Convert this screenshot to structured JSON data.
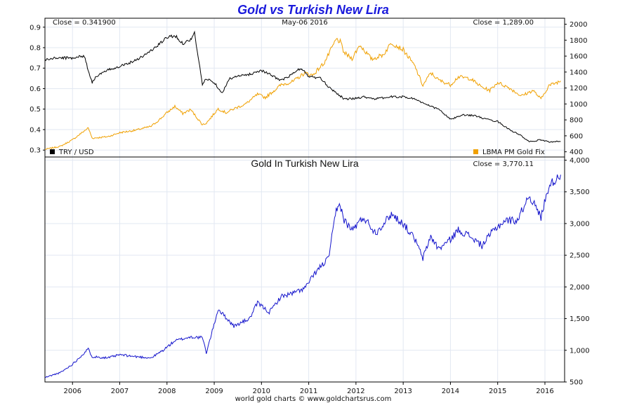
{
  "title": "Gold vs Turkish New Lira",
  "footer": "world gold charts © www.goldchartsrus.com",
  "chart_data": [
    {
      "type": "line",
      "date_label": "May-06 2016",
      "left_close_label": "Close = 0.341900",
      "right_close_label": "Close = 1,289.00",
      "x_range": [
        "2005-06",
        "2016-05"
      ],
      "x_ticks": [
        "2006",
        "2007",
        "2008",
        "2009",
        "2010",
        "2011",
        "2012",
        "2013",
        "2014",
        "2015",
        "2016"
      ],
      "left_axis": {
        "ylim": [
          0.28,
          0.93
        ],
        "ticks": [
          "0.3",
          "0.4",
          "0.5",
          "0.6",
          "0.7",
          "0.8",
          "0.9"
        ]
      },
      "right_axis": {
        "ylim": [
          370,
          2040
        ],
        "ticks": [
          "400",
          "600",
          "800",
          "1000",
          "1200",
          "1400",
          "1600",
          "1800",
          "2000"
        ]
      },
      "legend_position": "bottom",
      "grid": true,
      "series": [
        {
          "name": "TRY / USD",
          "axis": "left",
          "color": "#000000",
          "x": [
            "2005-06",
            "2005-09",
            "2006-01",
            "2006-04",
            "2006-05",
            "2006-06",
            "2006-07",
            "2006-10",
            "2007-01",
            "2007-04",
            "2007-07",
            "2007-10",
            "2008-01",
            "2008-03",
            "2008-05",
            "2008-07",
            "2008-08",
            "2008-10",
            "2008-11",
            "2009-01",
            "2009-03",
            "2009-05",
            "2009-07",
            "2009-10",
            "2010-01",
            "2010-04",
            "2010-06",
            "2010-08",
            "2010-11",
            "2011-01",
            "2011-04",
            "2011-06",
            "2011-08",
            "2011-10",
            "2011-12",
            "2012-03",
            "2012-06",
            "2012-10",
            "2013-01",
            "2013-04",
            "2013-07",
            "2013-10",
            "2014-01",
            "2014-04",
            "2014-07",
            "2014-10",
            "2015-01",
            "2015-04",
            "2015-07",
            "2015-09",
            "2015-12",
            "2016-02",
            "2016-05"
          ],
          "values": [
            0.74,
            0.75,
            0.75,
            0.76,
            0.69,
            0.63,
            0.66,
            0.69,
            0.71,
            0.73,
            0.76,
            0.8,
            0.85,
            0.86,
            0.82,
            0.84,
            0.87,
            0.62,
            0.65,
            0.63,
            0.58,
            0.65,
            0.66,
            0.67,
            0.69,
            0.66,
            0.64,
            0.66,
            0.7,
            0.66,
            0.65,
            0.61,
            0.58,
            0.55,
            0.55,
            0.56,
            0.55,
            0.56,
            0.56,
            0.55,
            0.52,
            0.5,
            0.45,
            0.47,
            0.47,
            0.45,
            0.44,
            0.4,
            0.37,
            0.34,
            0.35,
            0.34,
            0.342
          ]
        },
        {
          "name": "LBMA PM Gold Fix",
          "axis": "right",
          "color": "#f0a000",
          "x": [
            "2005-06",
            "2005-10",
            "2006-01",
            "2006-05",
            "2006-06",
            "2006-10",
            "2007-01",
            "2007-05",
            "2007-09",
            "2007-11",
            "2008-01",
            "2008-03",
            "2008-05",
            "2008-07",
            "2008-10",
            "2008-11",
            "2009-02",
            "2009-04",
            "2009-06",
            "2009-09",
            "2009-12",
            "2010-02",
            "2010-06",
            "2010-09",
            "2010-12",
            "2011-02",
            "2011-05",
            "2011-08",
            "2011-09",
            "2011-10",
            "2011-12",
            "2012-02",
            "2012-05",
            "2012-08",
            "2012-10",
            "2013-01",
            "2013-04",
            "2013-06",
            "2013-08",
            "2013-10",
            "2014-01",
            "2014-03",
            "2014-06",
            "2014-09",
            "2014-11",
            "2015-01",
            "2015-04",
            "2015-07",
            "2015-10",
            "2015-12",
            "2016-02",
            "2016-05"
          ],
          "values": [
            430,
            470,
            550,
            700,
            570,
            590,
            640,
            670,
            720,
            800,
            890,
            970,
            880,
            930,
            740,
            760,
            940,
            890,
            940,
            1000,
            1120,
            1080,
            1240,
            1280,
            1390,
            1360,
            1520,
            1810,
            1780,
            1640,
            1570,
            1740,
            1560,
            1620,
            1770,
            1680,
            1470,
            1230,
            1390,
            1300,
            1240,
            1340,
            1320,
            1210,
            1170,
            1270,
            1200,
            1100,
            1170,
            1060,
            1230,
            1289
          ]
        }
      ]
    },
    {
      "type": "line",
      "title": "Gold In Turkish New Lira",
      "close_label": "Close = 3,770.11",
      "x_range": [
        "2005-06",
        "2016-05"
      ],
      "x_ticks": [
        "2006",
        "2007",
        "2008",
        "2009",
        "2010",
        "2011",
        "2012",
        "2013",
        "2014",
        "2015",
        "2016"
      ],
      "right_axis": {
        "ylim": [
          500,
          4050
        ],
        "ticks": [
          "500",
          "1,000",
          "1,500",
          "2,000",
          "2,500",
          "3,000",
          "3,500",
          "4,000"
        ]
      },
      "grid": true,
      "series": [
        {
          "name": "",
          "color": "#1515cc",
          "x": [
            "2005-06",
            "2005-10",
            "2006-01",
            "2006-05",
            "2006-06",
            "2006-10",
            "2007-01",
            "2007-05",
            "2007-09",
            "2007-12",
            "2008-03",
            "2008-07",
            "2008-10",
            "2008-11",
            "2009-02",
            "2009-06",
            "2009-10",
            "2009-12",
            "2010-03",
            "2010-06",
            "2010-09",
            "2010-12",
            "2011-03",
            "2011-06",
            "2011-08",
            "2011-09",
            "2011-10",
            "2011-12",
            "2012-03",
            "2012-06",
            "2012-10",
            "2013-01",
            "2013-04",
            "2013-06",
            "2013-08",
            "2013-10",
            "2014-01",
            "2014-03",
            "2014-06",
            "2014-09",
            "2014-12",
            "2015-03",
            "2015-06",
            "2015-09",
            "2015-12",
            "2016-02",
            "2016-05"
          ],
          "values": [
            570,
            650,
            780,
            1020,
            900,
            880,
            930,
            900,
            880,
            1000,
            1150,
            1210,
            1200,
            960,
            1650,
            1380,
            1500,
            1750,
            1600,
            1850,
            1900,
            1980,
            2250,
            2450,
            3200,
            3300,
            3050,
            2900,
            3100,
            2850,
            3150,
            3000,
            2750,
            2450,
            2800,
            2600,
            2750,
            2900,
            2800,
            2650,
            2900,
            3050,
            3050,
            3450,
            3100,
            3600,
            3770.11
          ]
        }
      ]
    }
  ]
}
